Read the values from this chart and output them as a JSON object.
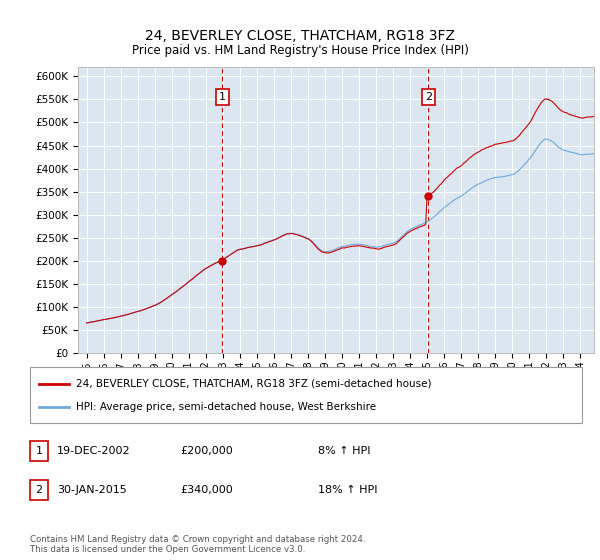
{
  "title": "24, BEVERLEY CLOSE, THATCHAM, RG18 3FZ",
  "subtitle": "Price paid vs. HM Land Registry's House Price Index (HPI)",
  "legend_line1": "24, BEVERLEY CLOSE, THATCHAM, RG18 3FZ (semi-detached house)",
  "legend_line2": "HPI: Average price, semi-detached house, West Berkshire",
  "footnote": "Contains HM Land Registry data © Crown copyright and database right 2024.\nThis data is licensed under the Open Government Licence v3.0.",
  "annotation1_label": "1",
  "annotation1_date": "19-DEC-2002",
  "annotation1_price": "£200,000",
  "annotation1_hpi": "8% ↑ HPI",
  "annotation2_label": "2",
  "annotation2_date": "30-JAN-2015",
  "annotation2_price": "£340,000",
  "annotation2_hpi": "18% ↑ HPI",
  "sale1_x": 2002.97,
  "sale1_y": 200000,
  "sale2_x": 2015.08,
  "sale2_y": 340000,
  "vline1_x": 2002.97,
  "vline2_x": 2015.08,
  "hpi_color": "#6fa8dc",
  "price_color": "#cc0000",
  "plot_bg": "#dce6f1",
  "ylim_min": 0,
  "ylim_max": 620000,
  "xlim_min": 1994.5,
  "xlim_max": 2024.8,
  "yticks": [
    0,
    50000,
    100000,
    150000,
    200000,
    250000,
    300000,
    350000,
    400000,
    450000,
    500000,
    550000,
    600000
  ],
  "ytick_labels": [
    "£0",
    "£50K",
    "£100K",
    "£150K",
    "£200K",
    "£250K",
    "£300K",
    "£350K",
    "£400K",
    "£450K",
    "£500K",
    "£550K",
    "£600K"
  ],
  "xticks": [
    1995,
    1996,
    1997,
    1998,
    1999,
    2000,
    2001,
    2002,
    2003,
    2004,
    2005,
    2006,
    2007,
    2008,
    2009,
    2010,
    2011,
    2012,
    2013,
    2014,
    2015,
    2016,
    2017,
    2018,
    2019,
    2020,
    2021,
    2022,
    2023,
    2024
  ]
}
